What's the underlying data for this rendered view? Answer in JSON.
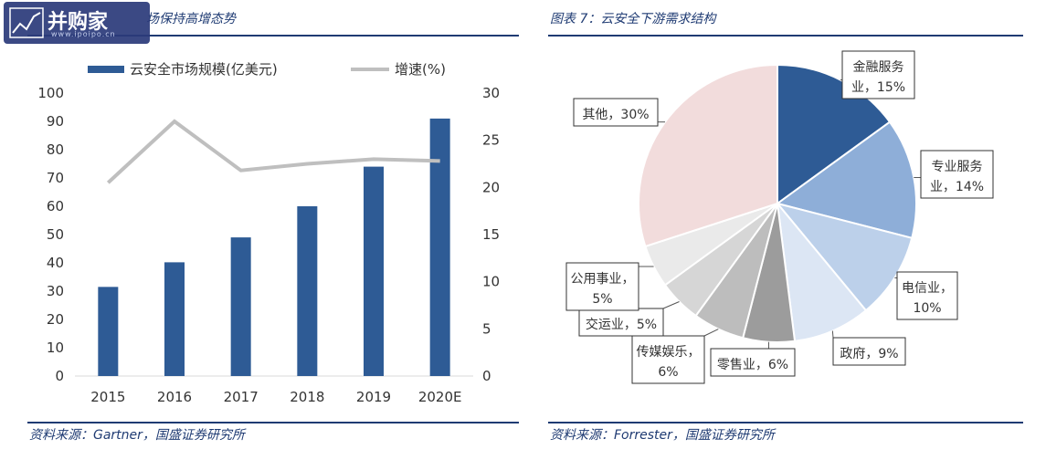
{
  "left": {
    "title": "场保持高增态势",
    "source": "资料来源：Gartner，国盛证券研究所"
  },
  "right": {
    "title": "图表 7：云安全下游需求结构",
    "source": "资料来源：Forrester，国盛证券研究所"
  },
  "logo": {
    "text": "并购家",
    "sub": "www.ipoipo.cn"
  },
  "colors": {
    "bar": "#2e5b95",
    "line": "#bfbfbf",
    "title": "#1f3b73",
    "axis": "#d9d9d9"
  },
  "chart_data": [
    {
      "type": "bar",
      "categories": [
        "2015",
        "2016",
        "2017",
        "2018",
        "2019",
        "2020E"
      ],
      "series": [
        {
          "name": "云安全市场规模(亿美元)",
          "type": "bar",
          "axis": "left",
          "values": [
            31.5,
            40.2,
            49,
            60,
            74,
            91
          ]
        },
        {
          "name": "增速(%)",
          "type": "line",
          "axis": "right",
          "values": [
            20.5,
            27,
            21.8,
            22.5,
            23,
            22.8
          ]
        }
      ],
      "ylim": [
        0,
        100
      ],
      "yticks": [
        0,
        10,
        20,
        30,
        40,
        50,
        60,
        70,
        80,
        90,
        100
      ],
      "y2lim": [
        0,
        30
      ],
      "y2ticks": [
        0,
        5,
        10,
        15,
        20,
        25,
        30
      ],
      "legend": "top"
    },
    {
      "type": "pie",
      "slices": [
        {
          "label_lines": [
            "金融服务",
            "业，15%"
          ],
          "value": 15,
          "color": "#2e5b95"
        },
        {
          "label_lines": [
            "专业服务",
            "业，14%"
          ],
          "value": 14,
          "color": "#8eaed8"
        },
        {
          "label_lines": [
            "电信业，",
            "10%"
          ],
          "value": 10,
          "color": "#bcd0ea"
        },
        {
          "label_lines": [
            "政府，9%"
          ],
          "value": 9,
          "color": "#dce6f4"
        },
        {
          "label_lines": [
            "零售业，6%"
          ],
          "value": 6,
          "color": "#9c9c9c"
        },
        {
          "label_lines": [
            "传媒娱乐，",
            "6%"
          ],
          "value": 6,
          "color": "#bdbdbd"
        },
        {
          "label_lines": [
            "交运业，5%"
          ],
          "value": 5,
          "color": "#d6d6d6"
        },
        {
          "label_lines": [
            "公用事业，",
            "5%"
          ],
          "value": 5,
          "color": "#eaeaea"
        },
        {
          "label_lines": [
            "其他，30%"
          ],
          "value": 30,
          "color": "#f2dcdc"
        }
      ]
    }
  ]
}
